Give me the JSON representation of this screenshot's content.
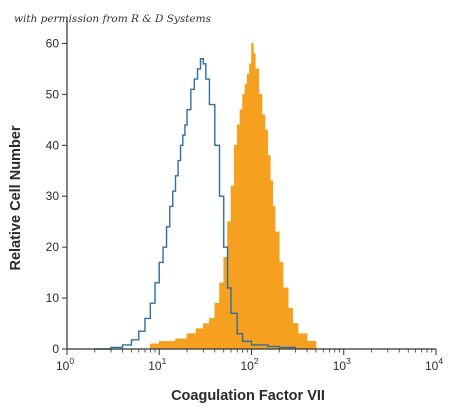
{
  "watermark": "with permission from R & D Systems",
  "chart_data": {
    "type": "area",
    "xlabel": "Coagulation Factor VII",
    "ylabel": "Relative Cell Number",
    "x_scale": "log",
    "xlim": [
      1,
      10000
    ],
    "ylim": [
      0,
      65
    ],
    "x_ticks": [
      {
        "value": 1,
        "base": "10",
        "exp": "0"
      },
      {
        "value": 10,
        "base": "10",
        "exp": "1"
      },
      {
        "value": 100,
        "base": "10",
        "exp": "2"
      },
      {
        "value": 1000,
        "base": "10",
        "exp": "3"
      },
      {
        "value": 10000,
        "base": "10",
        "exp": "4"
      }
    ],
    "y_ticks": [
      0,
      10,
      20,
      30,
      40,
      50,
      60
    ],
    "grid": false,
    "legend": "none",
    "series": [
      {
        "style": "outline",
        "color": "#2e6f9e",
        "points": [
          [
            2,
            0
          ],
          [
            3,
            0.3
          ],
          [
            4,
            0.8
          ],
          [
            5,
            1.8
          ],
          [
            6,
            3.5
          ],
          [
            7,
            6
          ],
          [
            8,
            9
          ],
          [
            9,
            13
          ],
          [
            10,
            17
          ],
          [
            11,
            20
          ],
          [
            12,
            24
          ],
          [
            13,
            28
          ],
          [
            14,
            31
          ],
          [
            15,
            34
          ],
          [
            16,
            37
          ],
          [
            17,
            40
          ],
          [
            18,
            42
          ],
          [
            19,
            44
          ],
          [
            20,
            47
          ],
          [
            22,
            51
          ],
          [
            24,
            53
          ],
          [
            26,
            55
          ],
          [
            28,
            57
          ],
          [
            30,
            56
          ],
          [
            32,
            53
          ],
          [
            35,
            48
          ],
          [
            40,
            40
          ],
          [
            45,
            30
          ],
          [
            50,
            20
          ],
          [
            55,
            12
          ],
          [
            60,
            7
          ],
          [
            70,
            3
          ],
          [
            80,
            1.5
          ],
          [
            100,
            0.8
          ],
          [
            150,
            0.5
          ],
          [
            200,
            0.3
          ],
          [
            300,
            0
          ]
        ]
      },
      {
        "style": "filled",
        "color": "#f5a01e",
        "points": [
          [
            6,
            0
          ],
          [
            8,
            1
          ],
          [
            10,
            1.5
          ],
          [
            15,
            2
          ],
          [
            20,
            3
          ],
          [
            25,
            4
          ],
          [
            30,
            5
          ],
          [
            35,
            6
          ],
          [
            40,
            9
          ],
          [
            45,
            13
          ],
          [
            50,
            18
          ],
          [
            55,
            25
          ],
          [
            60,
            32
          ],
          [
            65,
            40
          ],
          [
            70,
            44
          ],
          [
            75,
            47
          ],
          [
            80,
            50
          ],
          [
            85,
            52
          ],
          [
            90,
            54
          ],
          [
            95,
            56
          ],
          [
            100,
            60
          ],
          [
            105,
            58
          ],
          [
            110,
            55
          ],
          [
            120,
            50
          ],
          [
            130,
            46
          ],
          [
            140,
            43
          ],
          [
            150,
            38
          ],
          [
            160,
            33
          ],
          [
            170,
            28
          ],
          [
            180,
            23
          ],
          [
            200,
            17
          ],
          [
            220,
            12
          ],
          [
            250,
            8
          ],
          [
            280,
            5
          ],
          [
            320,
            3
          ],
          [
            400,
            1.5
          ],
          [
            500,
            0
          ]
        ]
      }
    ]
  }
}
